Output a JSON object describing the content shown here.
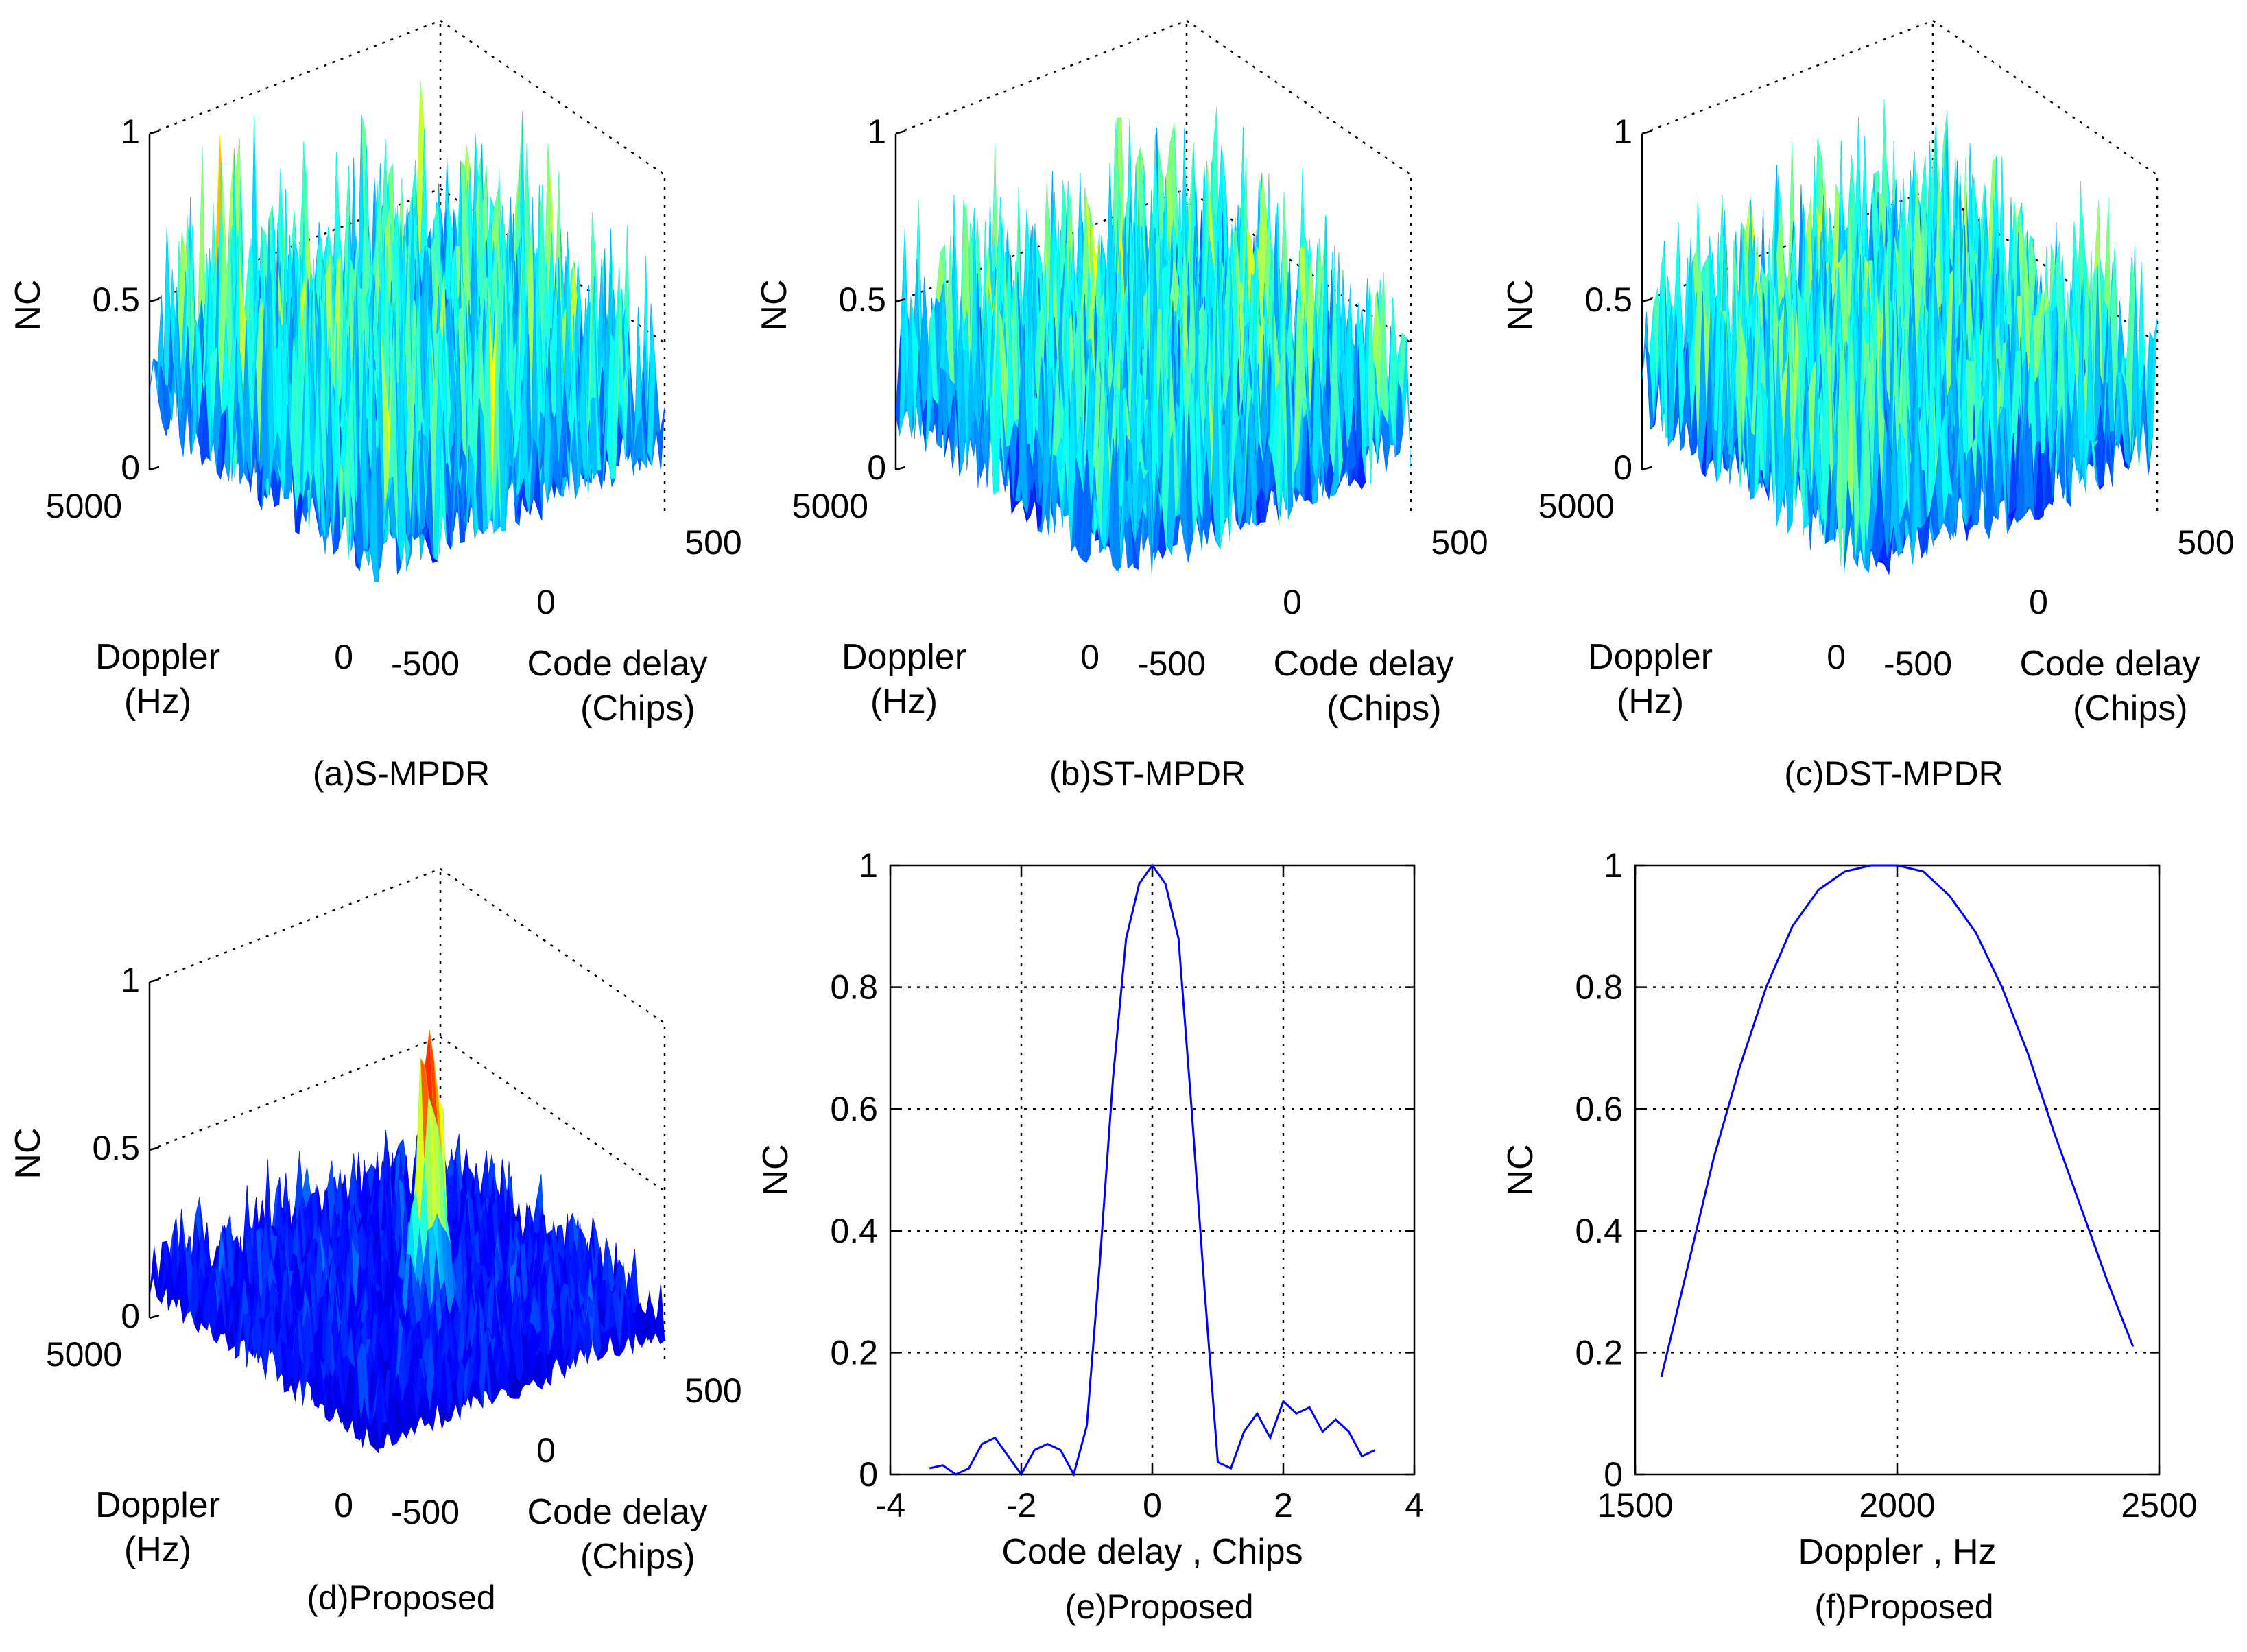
{
  "colors": {
    "line": "#0000ff",
    "grid": "#000000",
    "surface_colormap": "jet"
  },
  "chart_data": [
    {
      "id": "a",
      "type": "surface3d",
      "caption": "(a)S-MPDR",
      "zlabel": "NC",
      "xlabel": [
        "Doppler",
        "(Hz)"
      ],
      "ylabel": [
        "Code delay",
        "(Chips)"
      ],
      "zticks": [
        "0",
        "0.5",
        "1"
      ],
      "xticks": [
        "5000",
        "0"
      ],
      "yticks": [
        "-500",
        "0",
        "500"
      ],
      "zlim": [
        0,
        1
      ],
      "xlim": [
        0,
        5000
      ],
      "ylim": [
        -500,
        500
      ],
      "surface": {
        "style": "noisy",
        "noise_floor": 0.3,
        "noise_max": 0.95,
        "peak_value": null
      }
    },
    {
      "id": "b",
      "type": "surface3d",
      "caption": "(b)ST-MPDR",
      "zlabel": "NC",
      "xlabel": [
        "Doppler",
        "(Hz)"
      ],
      "ylabel": [
        "Code delay",
        "(Chips)"
      ],
      "zticks": [
        "0",
        "0.5",
        "1"
      ],
      "xticks": [
        "5000",
        "0"
      ],
      "yticks": [
        "-500",
        "0",
        "500"
      ],
      "zlim": [
        0,
        1
      ],
      "xlim": [
        0,
        5000
      ],
      "ylim": [
        -500,
        500
      ],
      "surface": {
        "style": "noisy",
        "noise_floor": 0.3,
        "noise_max": 0.9,
        "peak_value": null
      }
    },
    {
      "id": "c",
      "type": "surface3d",
      "caption": "(c)DST-MPDR",
      "zlabel": "NC",
      "xlabel": [
        "Doppler",
        "(Hz)"
      ],
      "ylabel": [
        "Code delay",
        "(Chips)"
      ],
      "zticks": [
        "0",
        "0.5",
        "1"
      ],
      "xticks": [
        "5000",
        "0"
      ],
      "yticks": [
        "-500",
        "0",
        "500"
      ],
      "zlim": [
        0,
        1
      ],
      "xlim": [
        0,
        5000
      ],
      "ylim": [
        -500,
        500
      ],
      "surface": {
        "style": "noisy",
        "noise_floor": 0.3,
        "noise_max": 0.9,
        "peak_value": null
      }
    },
    {
      "id": "d",
      "type": "surface3d",
      "caption": "(d)Proposed",
      "zlabel": "NC",
      "xlabel": [
        "Doppler",
        "(Hz)"
      ],
      "ylabel": [
        "Code delay",
        "(Chips)"
      ],
      "zticks": [
        "0",
        "0.5",
        "1"
      ],
      "xticks": [
        "5000",
        "0"
      ],
      "yticks": [
        "-500",
        "0",
        "500"
      ],
      "zlim": [
        0,
        1
      ],
      "xlim": [
        0,
        5000
      ],
      "ylim": [
        -500,
        500
      ],
      "surface": {
        "style": "single-peak",
        "noise_floor": 0.05,
        "noise_max": 0.35,
        "peak_value": 0.85,
        "peak_doppler": 2000,
        "peak_code_delay": 0
      }
    },
    {
      "id": "e",
      "type": "line",
      "caption": "(e)Proposed",
      "xlabel": "Code delay , Chips",
      "ylabel": "NC",
      "xlim": [
        -4,
        4
      ],
      "ylim": [
        0,
        1
      ],
      "grid": true,
      "xticks": [
        "-4",
        "-2",
        "0",
        "2",
        "4"
      ],
      "yticks": [
        "0",
        "0.2",
        "0.4",
        "0.6",
        "0.8",
        "1"
      ],
      "x": [
        -3.4,
        -3.2,
        -3.0,
        -2.8,
        -2.6,
        -2.4,
        -2.2,
        -2.0,
        -1.8,
        -1.6,
        -1.4,
        -1.2,
        -1.0,
        -0.8,
        -0.6,
        -0.4,
        -0.2,
        0.0,
        0.2,
        0.4,
        0.6,
        0.8,
        1.0,
        1.2,
        1.4,
        1.6,
        1.8,
        2.0,
        2.2,
        2.4,
        2.6,
        2.8,
        3.0,
        3.2,
        3.4
      ],
      "y": [
        0.01,
        0.015,
        0.0,
        0.01,
        0.05,
        0.06,
        0.03,
        0.0,
        0.04,
        0.05,
        0.04,
        0.0,
        0.08,
        0.35,
        0.65,
        0.88,
        0.97,
        1.0,
        0.97,
        0.88,
        0.6,
        0.3,
        0.02,
        0.01,
        0.07,
        0.1,
        0.06,
        0.12,
        0.1,
        0.11,
        0.07,
        0.09,
        0.07,
        0.03,
        0.04
      ]
    },
    {
      "id": "f",
      "type": "line",
      "caption": "(f)Proposed",
      "xlabel": "Doppler , Hz",
      "ylabel": "NC",
      "xlim": [
        1500,
        2500
      ],
      "ylim": [
        0,
        1
      ],
      "grid": true,
      "xticks": [
        "1500",
        "2000",
        "2500"
      ],
      "yticks": [
        "0",
        "0.2",
        "0.4",
        "0.6",
        "0.8",
        "1"
      ],
      "x": [
        1550,
        1600,
        1650,
        1700,
        1750,
        1800,
        1850,
        1900,
        1950,
        2000,
        2050,
        2100,
        2150,
        2200,
        2250,
        2300,
        2350,
        2400,
        2450
      ],
      "y": [
        0.16,
        0.34,
        0.52,
        0.67,
        0.8,
        0.9,
        0.96,
        0.99,
        1.0,
        1.0,
        0.99,
        0.95,
        0.89,
        0.8,
        0.69,
        0.56,
        0.44,
        0.32,
        0.21
      ]
    }
  ]
}
